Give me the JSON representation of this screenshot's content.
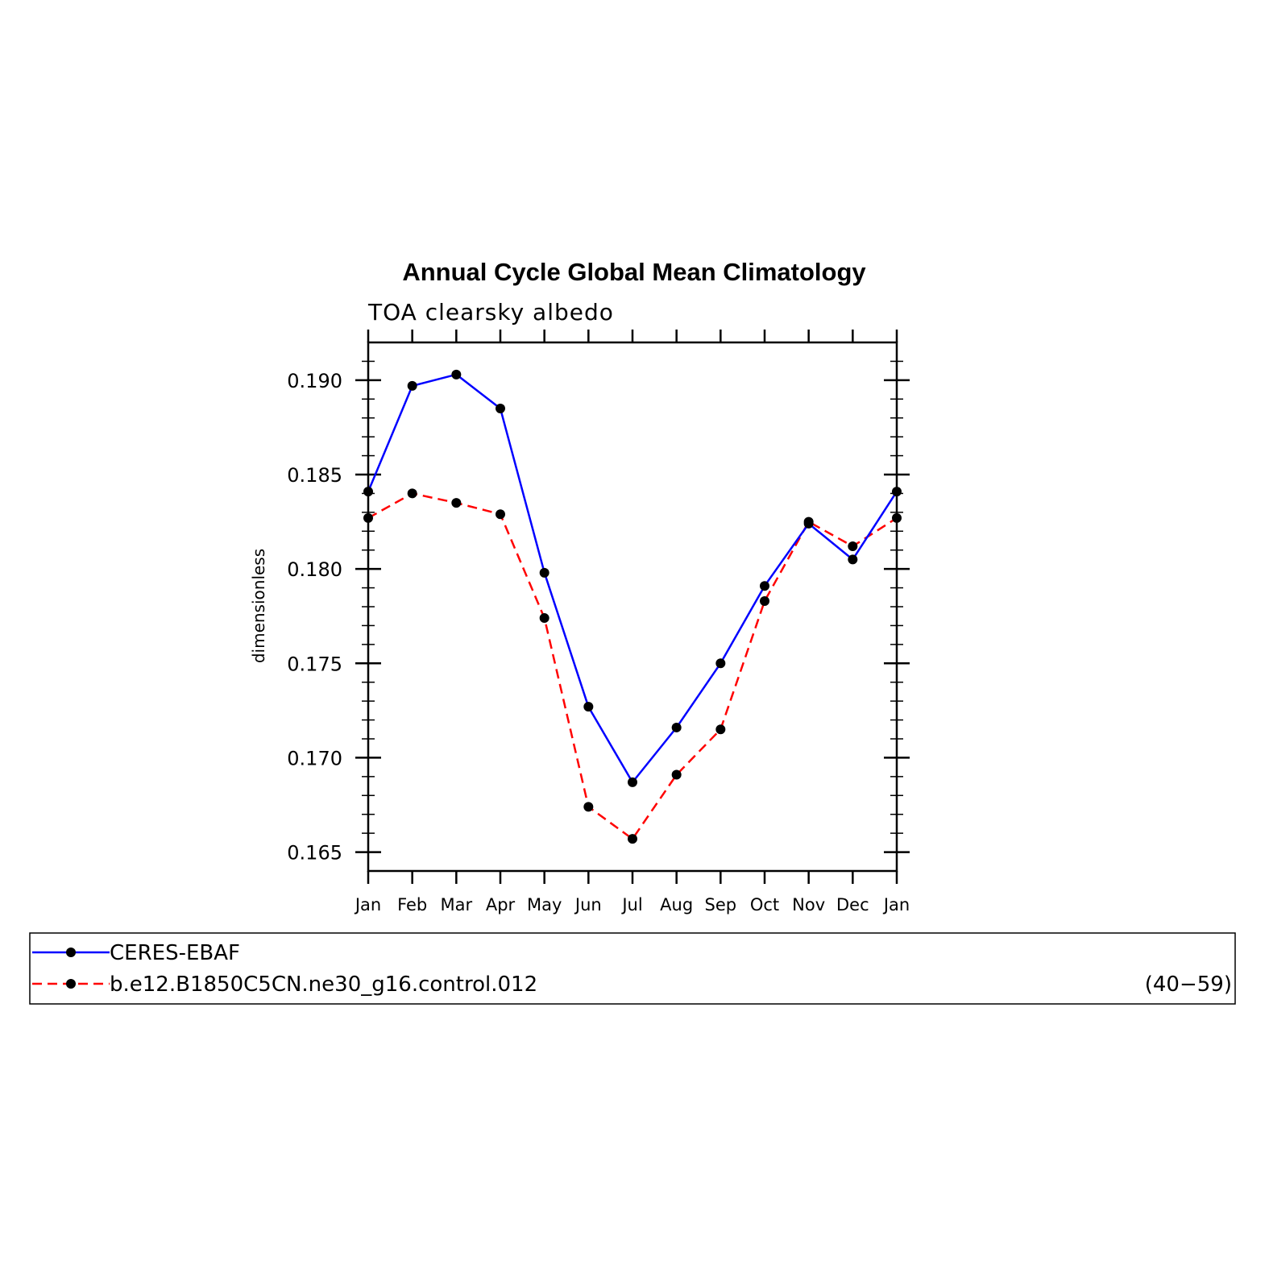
{
  "chart_data": {
    "type": "line",
    "title": "Annual Cycle Global Mean Climatology",
    "subtitle": "TOA clearsky albedo",
    "xlabel": "",
    "ylabel": "dimensionless",
    "categories": [
      "Jan",
      "Feb",
      "Mar",
      "Apr",
      "May",
      "Jun",
      "Jul",
      "Aug",
      "Sep",
      "Oct",
      "Nov",
      "Dec",
      "Jan"
    ],
    "ylim": [
      0.164,
      0.192
    ],
    "yticks": [
      0.165,
      0.17,
      0.175,
      0.18,
      0.185,
      0.19
    ],
    "ytick_labels": [
      "0.165",
      "0.170",
      "0.175",
      "0.180",
      "0.185",
      "0.190"
    ],
    "grid": false,
    "legend_placement": "bottom",
    "series": [
      {
        "name": "CERES-EBAF",
        "color": "#0000ff",
        "style": "solid",
        "marker": "filled-circle",
        "values": [
          0.1841,
          0.1897,
          0.1903,
          0.1885,
          0.1798,
          0.1727,
          0.1687,
          0.1716,
          0.175,
          0.1791,
          0.1824,
          0.1805,
          0.1841
        ]
      },
      {
        "name": "b.e12.B1850C5CN.ne30_g16.control.012",
        "years": "(40−59)",
        "color": "#ff0000",
        "style": "dashed",
        "marker": "filled-circle",
        "values": [
          0.1827,
          0.184,
          0.1835,
          0.1829,
          0.1774,
          0.1674,
          0.1657,
          0.1691,
          0.1715,
          0.1783,
          0.1825,
          0.1812,
          0.1827
        ]
      }
    ]
  }
}
